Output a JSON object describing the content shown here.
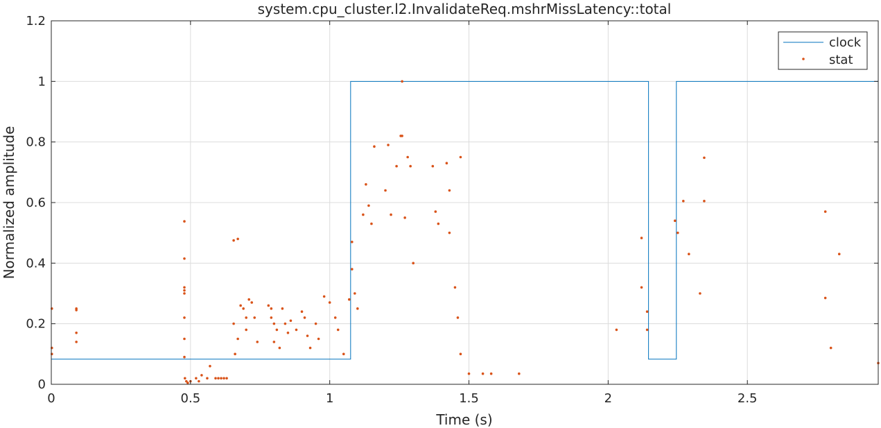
{
  "chart_data": {
    "type": "line",
    "title": "system.cpu_cluster.l2.InvalidateReq.mshrMissLatency::total",
    "xlabel": "Time (s)",
    "ylabel": "Normalized amplitude",
    "xlim": [
      0,
      2.97
    ],
    "ylim": [
      0,
      1.2
    ],
    "x_ticks": [
      0,
      0.5,
      1,
      1.5,
      2,
      2.5
    ],
    "x_tick_labels": [
      "0",
      "0.5",
      "1",
      "1.5",
      "2",
      "2.5"
    ],
    "y_ticks": [
      0,
      0.2,
      0.4,
      0.6,
      0.8,
      1,
      1.2
    ],
    "y_tick_labels": [
      "0",
      "0.2",
      "0.4",
      "0.6",
      "0.8",
      "1",
      "1.2"
    ],
    "grid": true,
    "legend": {
      "position": "top-right",
      "entries": [
        "clock",
        "stat"
      ]
    },
    "colors": {
      "clock": "#0072BD",
      "stat": "#D95319"
    },
    "series": [
      {
        "name": "clock",
        "style": "step-line",
        "x": [
          0,
          1.075,
          1.075,
          2.145,
          2.145,
          2.245,
          2.245,
          2.97
        ],
        "y": [
          0.083,
          0.083,
          1,
          1,
          0.083,
          0.083,
          1,
          1
        ]
      },
      {
        "name": "stat",
        "style": "scatter",
        "points": [
          [
            0.002,
            0.25
          ],
          [
            0.002,
            0.12
          ],
          [
            0.002,
            0.1
          ],
          [
            0.09,
            0.25
          ],
          [
            0.09,
            0.245
          ],
          [
            0.09,
            0.17
          ],
          [
            0.09,
            0.14
          ],
          [
            0.478,
            0.538
          ],
          [
            0.478,
            0.415
          ],
          [
            0.478,
            0.32
          ],
          [
            0.478,
            0.31
          ],
          [
            0.478,
            0.3
          ],
          [
            0.478,
            0.22
          ],
          [
            0.478,
            0.15
          ],
          [
            0.478,
            0.09
          ],
          [
            0.48,
            0.02
          ],
          [
            0.485,
            0.01
          ],
          [
            0.49,
            0.005
          ],
          [
            0.5,
            0.01
          ],
          [
            0.52,
            0.02
          ],
          [
            0.53,
            0.01
          ],
          [
            0.54,
            0.03
          ],
          [
            0.56,
            0.02
          ],
          [
            0.57,
            0.06
          ],
          [
            0.59,
            0.02
          ],
          [
            0.6,
            0.02
          ],
          [
            0.61,
            0.02
          ],
          [
            0.62,
            0.02
          ],
          [
            0.63,
            0.02
          ],
          [
            0.655,
            0.475
          ],
          [
            0.67,
            0.48
          ],
          [
            0.655,
            0.2
          ],
          [
            0.66,
            0.1
          ],
          [
            0.67,
            0.15
          ],
          [
            0.68,
            0.26
          ],
          [
            0.69,
            0.25
          ],
          [
            0.7,
            0.22
          ],
          [
            0.7,
            0.18
          ],
          [
            0.71,
            0.28
          ],
          [
            0.72,
            0.27
          ],
          [
            0.73,
            0.22
          ],
          [
            0.74,
            0.14
          ],
          [
            0.78,
            0.26
          ],
          [
            0.79,
            0.25
          ],
          [
            0.79,
            0.22
          ],
          [
            0.8,
            0.2
          ],
          [
            0.81,
            0.18
          ],
          [
            0.8,
            0.14
          ],
          [
            0.82,
            0.12
          ],
          [
            0.83,
            0.25
          ],
          [
            0.84,
            0.2
          ],
          [
            0.85,
            0.17
          ],
          [
            0.86,
            0.21
          ],
          [
            0.88,
            0.18
          ],
          [
            0.9,
            0.24
          ],
          [
            0.91,
            0.22
          ],
          [
            0.92,
            0.16
          ],
          [
            0.93,
            0.12
          ],
          [
            0.95,
            0.2
          ],
          [
            0.96,
            0.15
          ],
          [
            0.98,
            0.29
          ],
          [
            1.0,
            0.27
          ],
          [
            1.02,
            0.22
          ],
          [
            1.03,
            0.18
          ],
          [
            1.05,
            0.1
          ],
          [
            1.07,
            0.28
          ],
          [
            1.08,
            0.47
          ],
          [
            1.08,
            0.38
          ],
          [
            1.09,
            0.3
          ],
          [
            1.1,
            0.25
          ],
          [
            1.12,
            0.56
          ],
          [
            1.13,
            0.66
          ],
          [
            1.14,
            0.59
          ],
          [
            1.15,
            0.53
          ],
          [
            1.16,
            0.785
          ],
          [
            1.2,
            0.64
          ],
          [
            1.21,
            0.79
          ],
          [
            1.22,
            0.56
          ],
          [
            1.24,
            0.72
          ],
          [
            1.255,
            0.82
          ],
          [
            1.26,
            1.0
          ],
          [
            1.26,
            0.82
          ],
          [
            1.27,
            0.55
          ],
          [
            1.28,
            0.75
          ],
          [
            1.29,
            0.72
          ],
          [
            1.3,
            0.4
          ],
          [
            1.37,
            0.72
          ],
          [
            1.38,
            0.57
          ],
          [
            1.39,
            0.53
          ],
          [
            1.42,
            0.73
          ],
          [
            1.43,
            0.64
          ],
          [
            1.43,
            0.5
          ],
          [
            1.47,
            0.75
          ],
          [
            1.45,
            0.32
          ],
          [
            1.46,
            0.22
          ],
          [
            1.47,
            0.1
          ],
          [
            1.5,
            0.035
          ],
          [
            1.55,
            0.035
          ],
          [
            1.58,
            0.035
          ],
          [
            1.68,
            0.035
          ],
          [
            2.03,
            0.18
          ],
          [
            2.12,
            0.483
          ],
          [
            2.12,
            0.32
          ],
          [
            2.14,
            0.24
          ],
          [
            2.14,
            0.18
          ],
          [
            2.24,
            0.54
          ],
          [
            2.25,
            0.5
          ],
          [
            2.27,
            0.605
          ],
          [
            2.29,
            0.43
          ],
          [
            2.33,
            0.3
          ],
          [
            2.345,
            0.748
          ],
          [
            2.345,
            0.605
          ],
          [
            2.78,
            0.57
          ],
          [
            2.78,
            0.285
          ],
          [
            2.8,
            0.12
          ],
          [
            2.83,
            0.43
          ],
          [
            2.97,
            0.07
          ]
        ]
      }
    ]
  }
}
